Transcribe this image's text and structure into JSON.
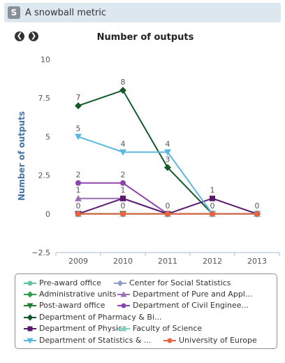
{
  "header": {
    "title": "A snowball metric",
    "icon": "snowball-logo-icon",
    "icon_letter": "S"
  },
  "nav": {
    "prev_icon": "circle-arrow-left-icon",
    "next_icon": "circle-arrow-right-icon",
    "prev_glyph": "❮",
    "next_glyph": "❯"
  },
  "chart_data": {
    "type": "line",
    "title": "Number of outputs",
    "ylabel": "Number of outputs",
    "xlabel": "",
    "categories": [
      "2009",
      "2010",
      "2011",
      "2012",
      "2013"
    ],
    "ylim": [
      -2.5,
      10
    ],
    "yticks": [
      -2.5,
      0,
      2.5,
      5,
      7.5,
      10
    ],
    "ytick_labels": [
      "−2.5",
      "0",
      "2.5",
      "5",
      "7.5",
      "10"
    ],
    "grid": false,
    "legend_position": "bottom",
    "series": [
      {
        "name": "Pre-award office",
        "color": "#5fc4a6",
        "marker": "circle",
        "values": [
          0,
          0,
          0,
          0,
          0
        ]
      },
      {
        "name": "Center for Social Statistics",
        "color": "#8f9fc7",
        "marker": "diamond",
        "values": [
          0,
          0,
          0,
          0,
          0
        ]
      },
      {
        "name": "Administrative units",
        "color": "#2e9d4f",
        "marker": "diamond",
        "values": [
          0,
          0,
          0,
          0,
          0
        ]
      },
      {
        "name": "Department of Pure and Appl...",
        "color": "#9b6fb5",
        "marker": "triangle",
        "values": [
          1,
          1,
          0,
          0,
          0
        ]
      },
      {
        "name": "Post-award office",
        "color": "#217a35",
        "marker": "triangle-down",
        "values": [
          0,
          0,
          0,
          0,
          0
        ]
      },
      {
        "name": "Department of Civil Enginee...",
        "color": "#8e44ad",
        "marker": "circle",
        "values": [
          2,
          2,
          0,
          0,
          0
        ]
      },
      {
        "name": "Department of Pharmacy & Bi...",
        "color": "#14592a",
        "marker": "diamond",
        "values": [
          7,
          8,
          3,
          0,
          0
        ]
      },
      {
        "name": "Department of Physics",
        "color": "#5b1a6e",
        "marker": "square",
        "values": [
          0,
          1,
          0,
          1,
          0
        ]
      },
      {
        "name": "Faculty of Science",
        "color": "#7fd1c6",
        "marker": "triangle",
        "values": [
          0,
          0,
          0,
          0,
          0
        ]
      },
      {
        "name": "Department of Statistics & ...",
        "color": "#5ab8e0",
        "marker": "triangle-down",
        "values": [
          5,
          4,
          4,
          0,
          0
        ]
      },
      {
        "name": "University of Europe",
        "color": "#e9633f",
        "marker": "circle",
        "values": [
          0,
          0,
          0,
          0,
          0
        ]
      }
    ],
    "data_labels": [
      {
        "series": "Department of Pharmacy & Bi...",
        "labels": [
          "7",
          "8",
          "",
          "",
          ""
        ]
      },
      {
        "series": "Department of Statistics & ...",
        "labels": [
          "5",
          "4",
          "4",
          "",
          ""
        ]
      },
      {
        "series": "Department of Civil Enginee...",
        "labels": [
          "2",
          "2",
          "",
          "",
          ""
        ]
      },
      {
        "series": "Department of Pure and Appl...",
        "labels": [
          "1",
          "1",
          "",
          "",
          ""
        ]
      },
      {
        "series": "Department of Pharmacy & Bi...",
        "labels": [
          "",
          "",
          "3",
          "",
          ""
        ]
      },
      {
        "series": "Department of Physics",
        "labels": [
          "",
          "",
          "",
          "1",
          ""
        ]
      },
      {
        "series": "University of Europe",
        "labels": [
          "0",
          "0",
          "0",
          "0",
          "0"
        ]
      }
    ]
  }
}
